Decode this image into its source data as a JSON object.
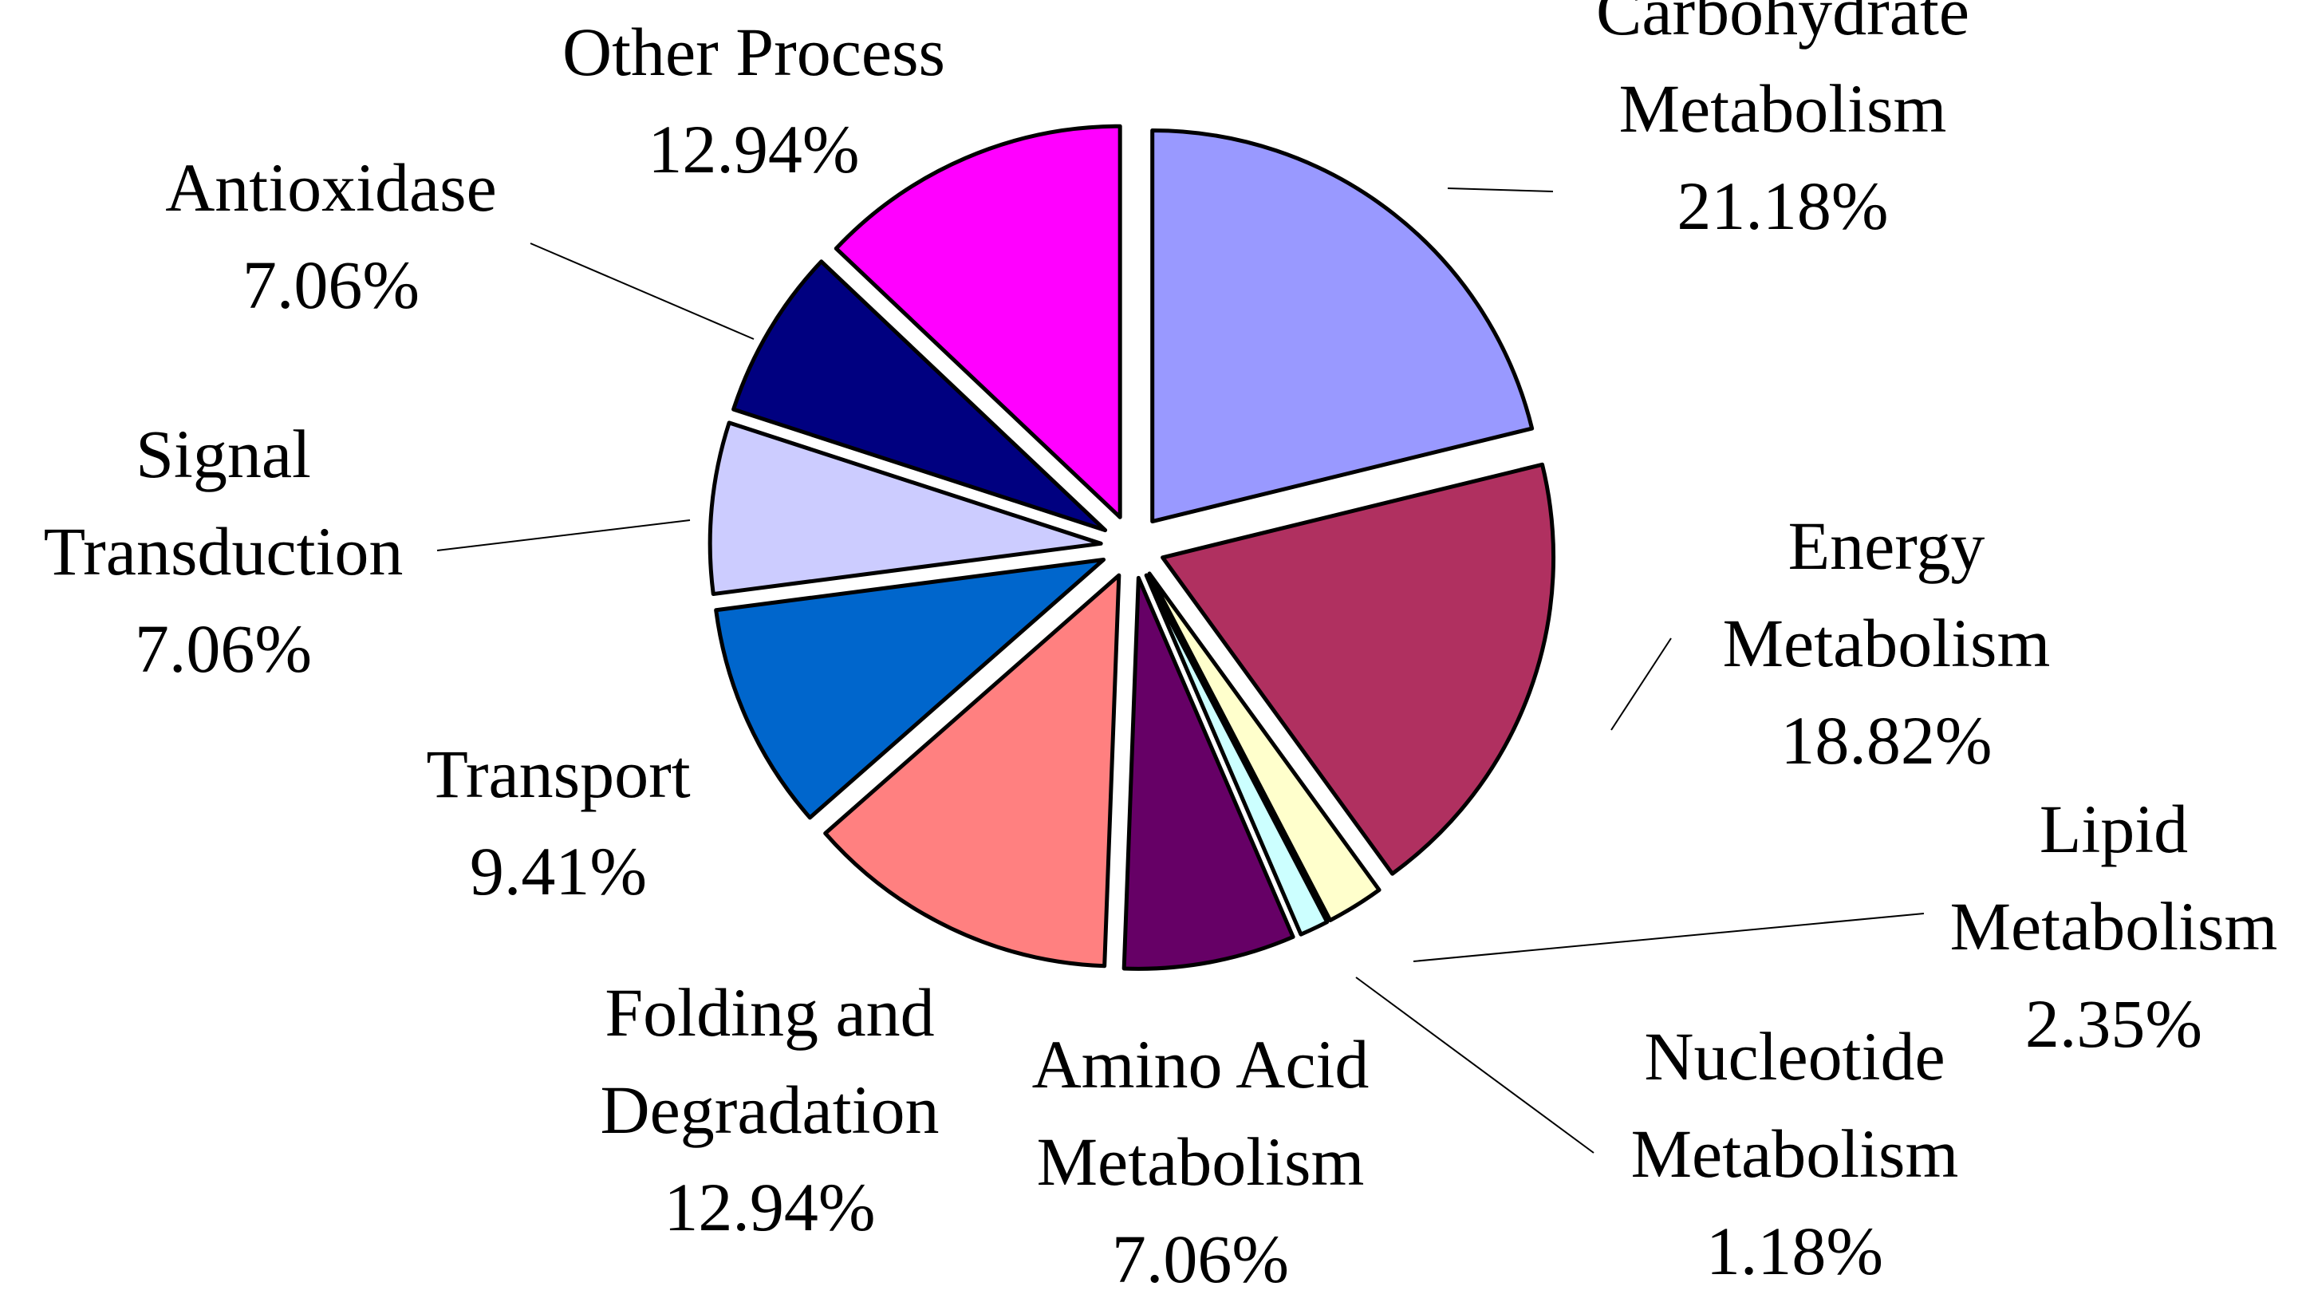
{
  "chart_data": {
    "type": "pie",
    "exploded": true,
    "start": "12 o'clock",
    "direction": "clockwise",
    "slices": [
      {
        "name": "carbohydrate",
        "lines": [
          "Carbohydrate",
          "Metabolism",
          "21.18%"
        ],
        "value": 21.18,
        "color": "#9999FF"
      },
      {
        "name": "energy",
        "lines": [
          "Energy",
          "Metabolism",
          "18.82%"
        ],
        "value": 18.82,
        "color": "#B03060"
      },
      {
        "name": "lipid",
        "lines": [
          "Lipid",
          "Metabolism",
          "2.35%"
        ],
        "value": 2.35,
        "color": "#FFFFCC"
      },
      {
        "name": "nucleotide",
        "lines": [
          "Nucleotide",
          "Metabolism",
          "1.18%"
        ],
        "value": 1.18,
        "color": "#CCFFFF"
      },
      {
        "name": "amino-acid",
        "lines": [
          "Amino Acid",
          "Metabolism",
          "7.06%"
        ],
        "value": 7.06,
        "color": "#660066"
      },
      {
        "name": "folding",
        "lines": [
          "Folding and",
          "Degradation",
          "12.94%"
        ],
        "value": 12.94,
        "color": "#FF8080"
      },
      {
        "name": "transport",
        "lines": [
          "Transport",
          "9.41%"
        ],
        "value": 9.41,
        "color": "#0066CC"
      },
      {
        "name": "signal",
        "lines": [
          "Signal",
          "Transduction",
          "7.06%"
        ],
        "value": 7.06,
        "color": "#CCCCFF"
      },
      {
        "name": "antioxidase",
        "lines": [
          "Antioxidase",
          "7.06%"
        ],
        "value": 7.06,
        "color": "#000080"
      },
      {
        "name": "other",
        "lines": [
          "Other Process",
          "12.94%"
        ],
        "value": 12.94,
        "color": "#FF00FF"
      }
    ]
  }
}
